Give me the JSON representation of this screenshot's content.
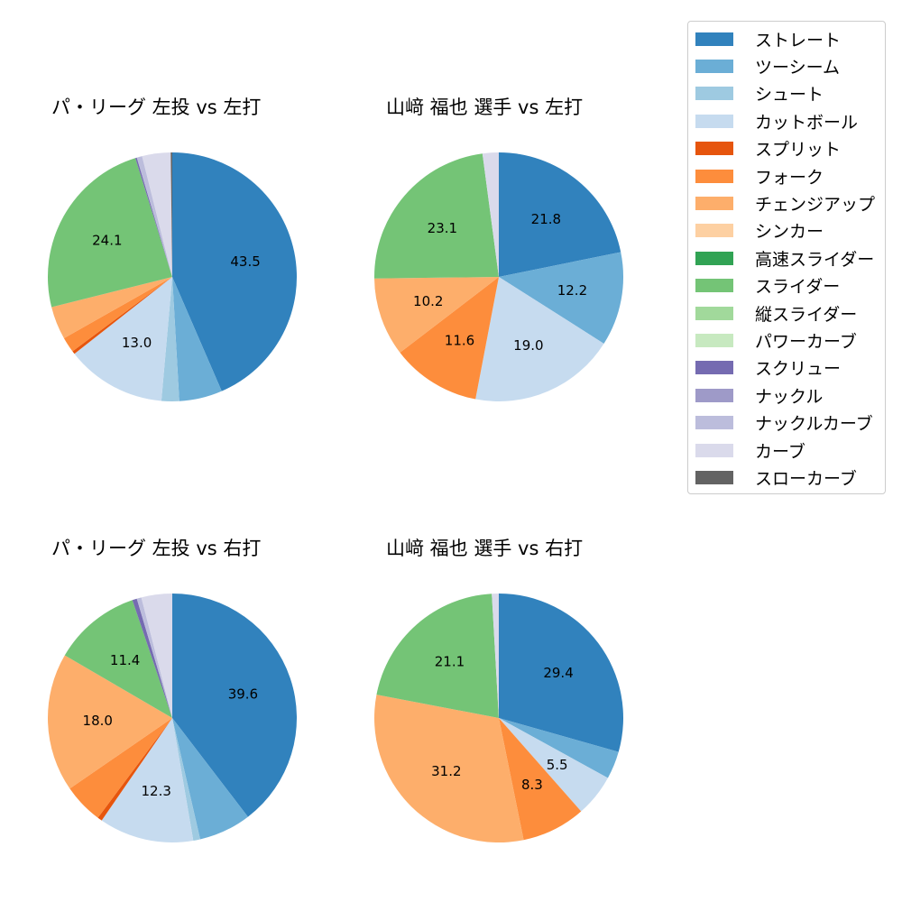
{
  "colors": {
    "ストレート": "#3182bd",
    "ツーシーム": "#6baed6",
    "シュート": "#9ecae1",
    "カットボール": "#c6dbef",
    "スプリット": "#e6550d",
    "フォーク": "#fd8d3c",
    "チェンジアップ": "#fdae6b",
    "シンカー": "#fdd0a2",
    "高速スライダー": "#31a354",
    "スライダー": "#74c476",
    "縦スライダー": "#a1d99b",
    "パワーカーブ": "#c7e9c0",
    "スクリュー": "#756bb1",
    "ナックル": "#9e9ac8",
    "ナックルカーブ": "#bcbddc",
    "カーブ": "#dadaeb",
    "スローカーブ": "#636363"
  },
  "legend": {
    "items": [
      "ストレート",
      "ツーシーム",
      "シュート",
      "カットボール",
      "スプリット",
      "フォーク",
      "チェンジアップ",
      "シンカー",
      "高速スライダー",
      "スライダー",
      "縦スライダー",
      "パワーカーブ",
      "スクリュー",
      "ナックル",
      "ナックルカーブ",
      "カーブ",
      "スローカーブ"
    ]
  },
  "chart_data": [
    {
      "type": "pie",
      "title": "パ・リーグ 左投 vs 左打",
      "categories": [
        "ストレート",
        "ツーシーム",
        "シュート",
        "カットボール",
        "スプリット",
        "フォーク",
        "チェンジアップ",
        "スライダー",
        "スクリュー",
        "ナックルカーブ",
        "カーブ",
        "スローカーブ"
      ],
      "values": [
        43.5,
        5.6,
        2.3,
        13.0,
        0.4,
        2.0,
        4.3,
        24.1,
        0.2,
        0.7,
        3.7,
        0.2
      ],
      "labels_shown": [
        "43.5",
        "",
        "",
        "13.0",
        "",
        "",
        "",
        "24.1",
        "",
        "",
        "",
        ""
      ],
      "start_angle": 90,
      "direction": "clockwise"
    },
    {
      "type": "pie",
      "title": "山﨑 福也 選手 vs 左打",
      "categories": [
        "ストレート",
        "ツーシーム",
        "カットボール",
        "フォーク",
        "チェンジアップ",
        "スライダー",
        "カーブ"
      ],
      "values": [
        21.8,
        12.2,
        19.0,
        11.6,
        10.2,
        23.1,
        2.1
      ],
      "labels_shown": [
        "21.8",
        "12.2",
        "19.0",
        "11.6",
        "10.2",
        "23.1",
        ""
      ],
      "start_angle": 90,
      "direction": "clockwise"
    },
    {
      "type": "pie",
      "title": "パ・リーグ 左投 vs 右打",
      "categories": [
        "ストレート",
        "ツーシーム",
        "シュート",
        "カットボール",
        "スプリット",
        "フォーク",
        "チェンジアップ",
        "スライダー",
        "スクリュー",
        "ナックルカーブ",
        "カーブ"
      ],
      "values": [
        39.6,
        6.8,
        0.9,
        12.3,
        0.6,
        5.2,
        18.0,
        11.4,
        0.6,
        0.6,
        4.0
      ],
      "labels_shown": [
        "39.6",
        "",
        "",
        "12.3",
        "",
        "",
        "18.0",
        "11.4",
        "",
        "",
        ""
      ],
      "start_angle": 90,
      "direction": "clockwise"
    },
    {
      "type": "pie",
      "title": "山﨑 福也 選手 vs 右打",
      "categories": [
        "ストレート",
        "ツーシーム",
        "カットボール",
        "フォーク",
        "チェンジアップ",
        "スライダー",
        "カーブ"
      ],
      "values": [
        29.4,
        3.6,
        5.5,
        8.3,
        31.2,
        21.1,
        0.9
      ],
      "labels_shown": [
        "29.4",
        "",
        "5.5",
        "8.3",
        "31.2",
        "21.1",
        ""
      ],
      "start_angle": 90,
      "direction": "clockwise"
    }
  ],
  "panels": [
    {
      "title": "パ・リーグ 左投 vs 左打"
    },
    {
      "title": "山﨑 福也 選手 vs 左打"
    },
    {
      "title": "パ・リーグ 左投 vs 右打"
    },
    {
      "title": "山﨑 福也 選手 vs 右打"
    }
  ]
}
